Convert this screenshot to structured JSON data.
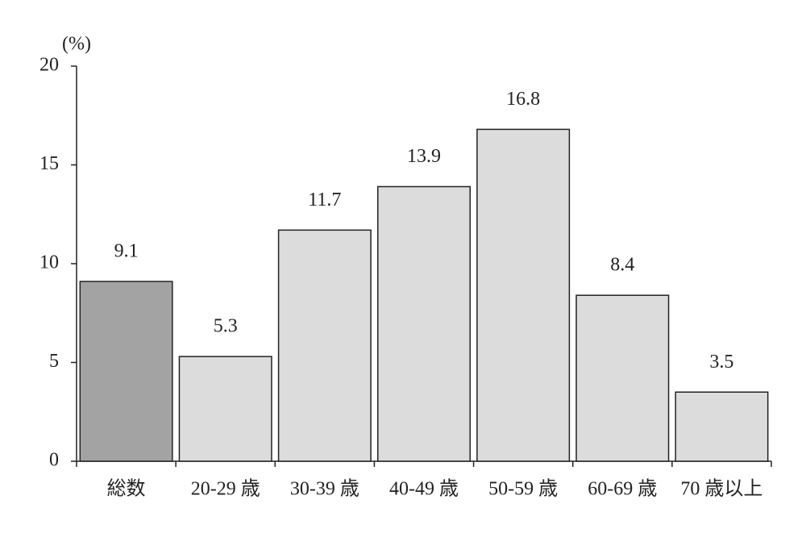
{
  "chart_data": {
    "type": "bar",
    "y_label": "(%)",
    "categories": [
      "総数",
      "20-29 歳",
      "30-39 歳",
      "40-49 歳",
      "50-59 歳",
      "60-69 歳",
      "70 歳以上"
    ],
    "values": [
      9.1,
      5.3,
      11.7,
      13.9,
      16.8,
      8.4,
      3.5
    ],
    "colors": [
      "#a3a3a3",
      "#dcdcdc",
      "#dcdcdc",
      "#dcdcdc",
      "#dcdcdc",
      "#dcdcdc",
      "#dcdcdc"
    ],
    "ylim": [
      0,
      20
    ],
    "yticks": [
      0,
      5,
      10,
      15,
      20
    ],
    "grid": false
  }
}
